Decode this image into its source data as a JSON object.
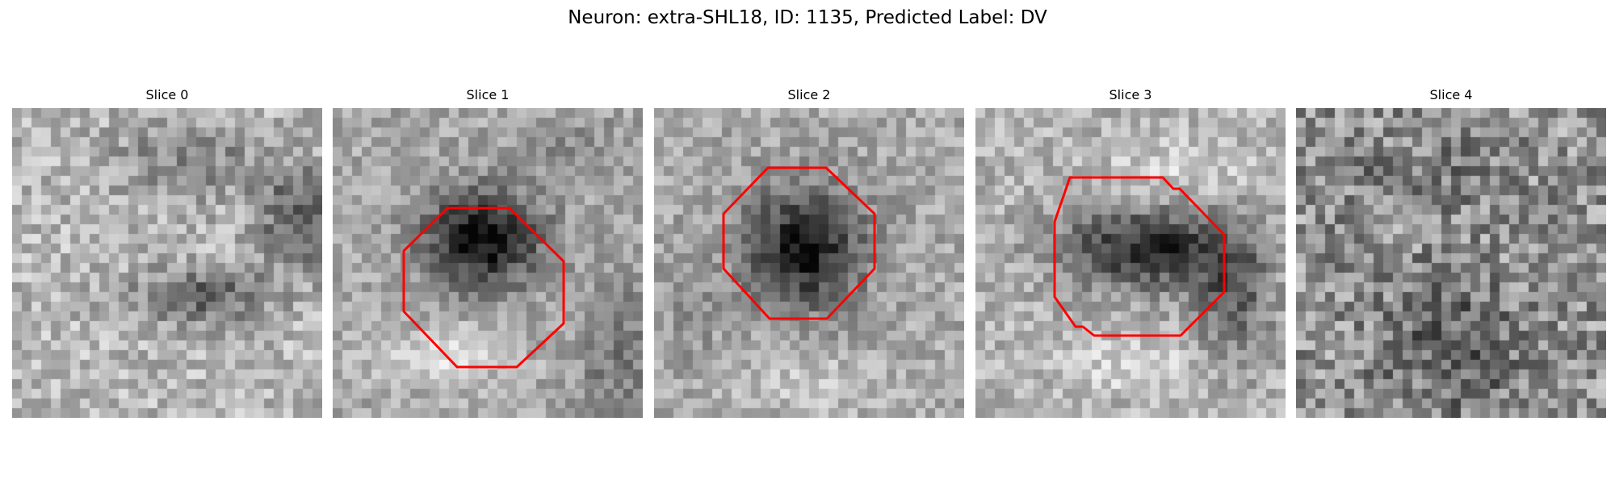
{
  "figure": {
    "title": "Neuron: extra-SHL18, ID: 1135, Predicted Label: DV",
    "outline_color": "#ff0000"
  },
  "panels": [
    {
      "label": "Slice 0",
      "has_outline": false
    },
    {
      "label": "Slice 1",
      "has_outline": true
    },
    {
      "label": "Slice 2",
      "has_outline": true
    },
    {
      "label": "Slice 3",
      "has_outline": true
    },
    {
      "label": "Slice 4",
      "has_outline": false
    }
  ]
}
